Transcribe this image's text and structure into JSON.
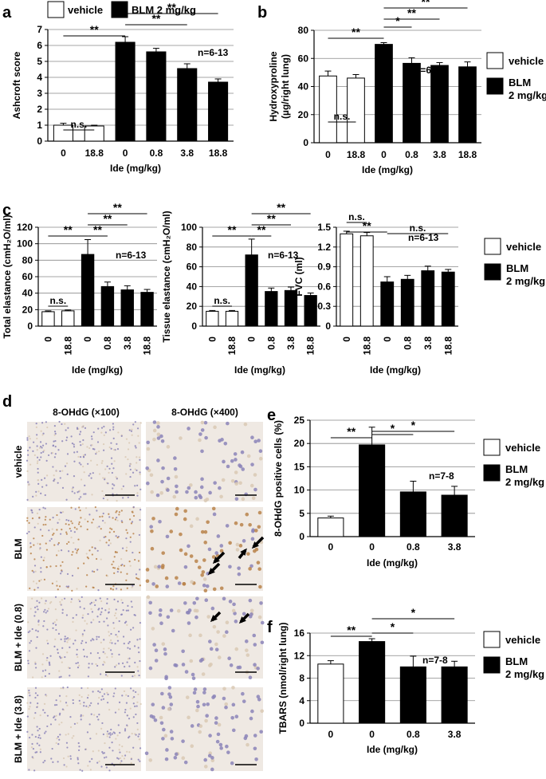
{
  "panel_labels": [
    "a",
    "b",
    "c",
    "d",
    "e",
    "f"
  ],
  "legend": {
    "vehicle": "vehicle",
    "blm": "BLM 2 mg/kg",
    "blm_line1": "BLM",
    "blm_line2": "2 mg/kg"
  },
  "micrographs": {
    "col_headers": [
      "8-OHdG (×100)",
      "8-OHdG (×400)"
    ],
    "row_labels": [
      "vehicle",
      "BLM",
      "BLM + Ide (0.8)",
      "BLM + Ide (3.8)"
    ]
  },
  "colors": {
    "vehicle_fill": "#ffffff",
    "blm_fill": "#000000",
    "tissue_bg": "#efe9e3"
  },
  "chart_data": [
    {
      "id": "a",
      "type": "bar",
      "categories": [
        "0",
        "18.8",
        "0",
        "0.8",
        "3.8",
        "18.8"
      ],
      "groups": [
        "vehicle",
        "vehicle",
        "blm",
        "blm",
        "blm",
        "blm"
      ],
      "values": [
        1.0,
        0.95,
        6.2,
        5.6,
        4.55,
        3.7
      ],
      "errors": [
        0.12,
        0.05,
        0.35,
        0.22,
        0.3,
        0.2
      ],
      "ylabel": "Ashcroft score",
      "xlabel": "Ide (mg/kg)",
      "ylim": [
        0,
        7
      ],
      "yticks": [
        "0",
        "1",
        "2",
        "3",
        "4",
        "5",
        "6",
        "7"
      ],
      "annotation": "n=6-13",
      "brackets": [
        {
          "from": 0,
          "to": 1,
          "label": "n.s."
        },
        {
          "from": 0,
          "to": 2,
          "label": "**"
        },
        {
          "from": 2,
          "to": 4,
          "label": "**"
        },
        {
          "from": 2,
          "to": 5,
          "label": "**"
        }
      ]
    },
    {
      "id": "b",
      "type": "bar",
      "categories": [
        "0",
        "18.8",
        "0",
        "0.8",
        "3.8",
        "18.8"
      ],
      "groups": [
        "vehicle",
        "vehicle",
        "blm",
        "blm",
        "blm",
        "blm"
      ],
      "values": [
        47.5,
        46,
        70,
        56.5,
        55,
        54
      ],
      "errors": [
        3.5,
        2.5,
        1.2,
        4,
        2,
        3.5
      ],
      "ylabel": "Hydroxyproline",
      "ylabel2": "(µg/right lung)",
      "xlabel": "Ide (mg/kg)",
      "ylim": [
        0,
        80
      ],
      "yticks": [
        "0",
        "20",
        "40",
        "60",
        "80"
      ],
      "annotation": "n=6-13",
      "brackets": [
        {
          "from": 0,
          "to": 1,
          "label": "n.s."
        },
        {
          "from": 0,
          "to": 2,
          "label": "**"
        },
        {
          "from": 2,
          "to": 3,
          "label": "*"
        },
        {
          "from": 2,
          "to": 4,
          "label": "**"
        },
        {
          "from": 2,
          "to": 5,
          "label": "**"
        }
      ]
    },
    {
      "id": "c1",
      "type": "bar",
      "categories": [
        "0",
        "18.8",
        "0",
        "0.8",
        "3.8",
        "18.8"
      ],
      "groups": [
        "vehicle",
        "vehicle",
        "blm",
        "blm",
        "blm",
        "blm"
      ],
      "values": [
        17.5,
        18.5,
        87,
        48,
        44,
        41
      ],
      "errors": [
        1,
        1,
        18,
        5.5,
        5,
        3.5
      ],
      "ylabel": "Total elastance (cmH₂O/ml)",
      "xlabel": "Ide (mg/kg)",
      "ylim": [
        0,
        120
      ],
      "yticks": [
        "0",
        "20",
        "40",
        "60",
        "80",
        "100",
        "120"
      ],
      "annotation": "n=6-13",
      "brackets": [
        {
          "from": 0,
          "to": 1,
          "label": "n.s."
        },
        {
          "from": 0,
          "to": 2,
          "label": "**"
        },
        {
          "from": 2,
          "to": 3,
          "label": "**"
        },
        {
          "from": 2,
          "to": 4,
          "label": "**"
        },
        {
          "from": 2,
          "to": 5,
          "label": "**"
        }
      ]
    },
    {
      "id": "c2",
      "type": "bar",
      "categories": [
        "0",
        "18.8",
        "0",
        "0.8",
        "3.8",
        "18.8"
      ],
      "groups": [
        "vehicle",
        "vehicle",
        "blm",
        "blm",
        "blm",
        "blm"
      ],
      "values": [
        15,
        15,
        72,
        35,
        36,
        31
      ],
      "errors": [
        0.8,
        0.8,
        16,
        3.5,
        3.5,
        2.5
      ],
      "ylabel": "Tissue elastance (cmH₂O/ml)",
      "xlabel": "Ide (mg/kg)",
      "ylim": [
        0,
        100
      ],
      "yticks": [
        "0",
        "20",
        "40",
        "60",
        "80",
        "100"
      ],
      "annotation": "n=6-13",
      "brackets": [
        {
          "from": 0,
          "to": 1,
          "label": "n.s."
        },
        {
          "from": 0,
          "to": 2,
          "label": "**"
        },
        {
          "from": 2,
          "to": 3,
          "label": "**"
        },
        {
          "from": 2,
          "to": 4,
          "label": "**"
        },
        {
          "from": 2,
          "to": 5,
          "label": "**"
        }
      ]
    },
    {
      "id": "c3",
      "type": "bar",
      "categories": [
        "0",
        "18.8",
        "0",
        "0.8",
        "3.8",
        "18.8"
      ],
      "groups": [
        "vehicle",
        "vehicle",
        "blm",
        "blm",
        "blm",
        "blm"
      ],
      "values": [
        1.4,
        1.37,
        0.67,
        0.71,
        0.84,
        0.82
      ],
      "errors": [
        0.04,
        0.05,
        0.08,
        0.06,
        0.07,
        0.04
      ],
      "ylabel": "FVC (ml)",
      "xlabel": "Ide (mg/kg)",
      "ylim": [
        0,
        1.5
      ],
      "yticks": [
        "0",
        "0.3",
        "0.6",
        "0.9",
        "1.2",
        "1.5"
      ],
      "annotation": "n=6-13",
      "brackets": [
        {
          "from": 0,
          "to": 1,
          "label": "n.s."
        },
        {
          "from": 0,
          "to": 2,
          "label": "**"
        },
        {
          "from": 2,
          "to": 5,
          "label": "n.s."
        }
      ]
    },
    {
      "id": "e",
      "type": "bar",
      "categories": [
        "0",
        "0",
        "0.8",
        "3.8"
      ],
      "groups": [
        "vehicle",
        "blm",
        "blm",
        "blm"
      ],
      "values": [
        4.0,
        19.7,
        9.6,
        8.9
      ],
      "errors": [
        0.4,
        3.8,
        2.3,
        1.9
      ],
      "ylabel": "8-OHdG positive cells (%)",
      "xlabel": "Ide (mg/kg)",
      "ylim": [
        0,
        25
      ],
      "yticks": [
        "0",
        "5",
        "10",
        "15",
        "20",
        "25"
      ],
      "annotation": "n=7-8",
      "brackets": [
        {
          "from": 0,
          "to": 1,
          "label": "**"
        },
        {
          "from": 1,
          "to": 2,
          "label": "*"
        },
        {
          "from": 1,
          "to": 3,
          "label": "*"
        }
      ]
    },
    {
      "id": "f",
      "type": "bar",
      "categories": [
        "0",
        "0",
        "0.8",
        "3.8"
      ],
      "groups": [
        "vehicle",
        "blm",
        "blm",
        "blm"
      ],
      "values": [
        10.5,
        14.5,
        10,
        10
      ],
      "errors": [
        0.6,
        0.5,
        1.9,
        1
      ],
      "ylabel": "TBARS (nmol/right lung)",
      "xlabel": "Ide (mg/kg)",
      "ylim": [
        0,
        16
      ],
      "yticks": [
        "0",
        "4",
        "8",
        "12",
        "16"
      ],
      "annotation": "n=7-8",
      "brackets": [
        {
          "from": 0,
          "to": 1,
          "label": "**"
        },
        {
          "from": 1,
          "to": 2,
          "label": "*"
        },
        {
          "from": 1,
          "to": 3,
          "label": "*"
        }
      ]
    }
  ]
}
